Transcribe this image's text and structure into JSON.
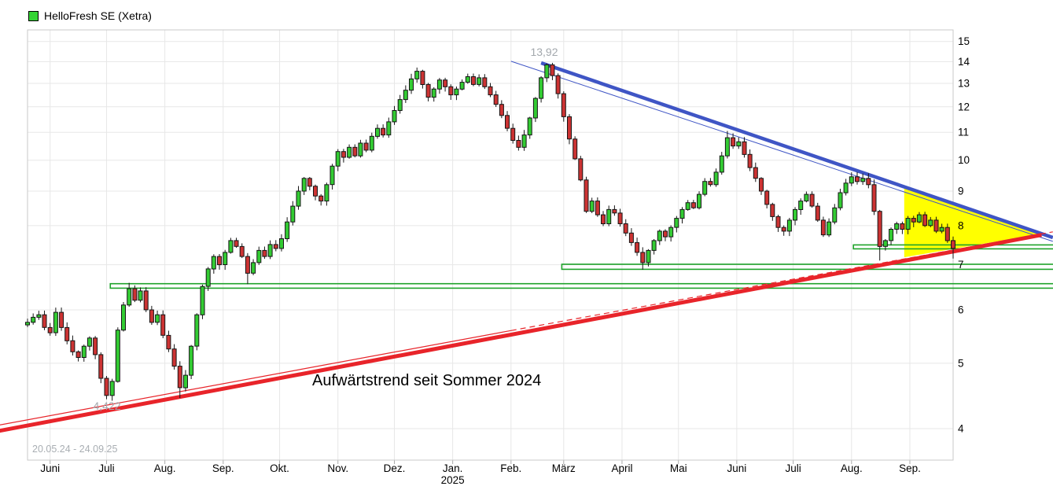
{
  "header": {
    "legend_color": "#35d435",
    "instrument": "HelloFresh SE (Xetra)"
  },
  "labels": {
    "high": "13,92",
    "low": "4,422",
    "range": "20.05.24 - 24.09.25",
    "annotation": "Aufwärtstrend seit Sommer 2024"
  },
  "chart_data": {
    "type": "candlestick",
    "instrument": "HelloFresh SE (Xetra)",
    "period": "20.05.24 - 24.09.25",
    "yscale": "log",
    "ylim": [
      3.6,
      15.6
    ],
    "grid": true,
    "y_ticks": [
      15,
      14,
      13,
      12,
      11,
      10,
      9,
      8,
      7,
      6,
      5,
      4
    ],
    "total_days": 492,
    "x_months": [
      {
        "label": "Juni",
        "day": 12
      },
      {
        "label": "Juli",
        "day": 42
      },
      {
        "label": "Aug.",
        "day": 73
      },
      {
        "label": "Sep.",
        "day": 104
      },
      {
        "label": "Okt.",
        "day": 134
      },
      {
        "label": "Nov.",
        "day": 165
      },
      {
        "label": "Dez.",
        "day": 195
      },
      {
        "label": "Jan.",
        "day": 226,
        "sublabel": "2025"
      },
      {
        "label": "Feb.",
        "day": 257
      },
      {
        "label": "März",
        "day": 285
      },
      {
        "label": "April",
        "day": 316
      },
      {
        "label": "Mai",
        "day": 346
      },
      {
        "label": "Juni",
        "day": 377
      },
      {
        "label": "Juli",
        "day": 407
      },
      {
        "label": "Aug.",
        "day": 438
      },
      {
        "label": "Sep.",
        "day": 469
      }
    ],
    "candles": {
      "step_days": 3,
      "first_open": 5.7,
      "closes": [
        5.75,
        5.85,
        5.9,
        5.65,
        5.55,
        5.95,
        5.65,
        5.4,
        5.2,
        5.1,
        5.3,
        5.45,
        5.15,
        4.75,
        4.48,
        4.7,
        5.6,
        6.1,
        6.45,
        6.2,
        6.4,
        6.0,
        5.75,
        5.9,
        5.5,
        5.25,
        4.95,
        4.6,
        4.8,
        5.3,
        5.9,
        6.5,
        6.9,
        7.2,
        7.0,
        7.3,
        7.6,
        7.45,
        7.2,
        6.8,
        7.05,
        7.35,
        7.2,
        7.5,
        7.4,
        7.65,
        8.1,
        8.55,
        9.0,
        9.4,
        9.15,
        8.85,
        8.7,
        9.2,
        9.8,
        10.3,
        10.1,
        10.45,
        10.15,
        10.6,
        10.35,
        10.85,
        11.15,
        10.9,
        11.4,
        11.85,
        12.3,
        12.7,
        13.2,
        13.55,
        12.95,
        12.4,
        12.75,
        13.15,
        12.85,
        12.5,
        12.75,
        13.05,
        13.3,
        12.95,
        13.25,
        12.85,
        12.5,
        12.1,
        11.65,
        11.15,
        10.7,
        10.45,
        10.9,
        11.55,
        12.35,
        13.25,
        13.85,
        13.35,
        12.55,
        11.6,
        10.75,
        10.05,
        9.35,
        8.4,
        8.7,
        8.3,
        8.05,
        8.45,
        8.35,
        8.05,
        7.8,
        7.55,
        7.3,
        7.05,
        7.35,
        7.6,
        7.85,
        7.7,
        7.95,
        8.2,
        8.45,
        8.65,
        8.5,
        8.9,
        9.3,
        9.2,
        9.6,
        10.15,
        10.8,
        10.5,
        10.65,
        10.2,
        9.75,
        9.4,
        9.0,
        8.6,
        8.25,
        7.95,
        7.85,
        8.15,
        8.45,
        8.7,
        8.9,
        8.55,
        8.15,
        7.75,
        8.1,
        8.5,
        8.95,
        9.25,
        9.45,
        9.3,
        9.4,
        9.2,
        8.4,
        7.45,
        7.6,
        7.9,
        8.05,
        7.9,
        8.2,
        8.1,
        8.3,
        8.0,
        8.15,
        7.85,
        7.95,
        7.6,
        7.4
      ],
      "wick_low": {
        "14": 4.422,
        "27": 4.44,
        "39": 6.55,
        "109": 6.88,
        "151": 7.1,
        "164": 7.15
      },
      "wick_high": {
        "18": 6.58,
        "69": 13.72,
        "92": 13.92,
        "124": 11.05
      }
    },
    "high_point": {
      "day": 276,
      "price": 13.92,
      "label": "13,92"
    },
    "low_point": {
      "day": 42,
      "price": 4.422,
      "label": "4,422"
    },
    "trendlines": [
      {
        "name": "downtrend-line-inner",
        "color": "#3f55c5",
        "width": 1,
        "points": [
          [
            257,
            14.02
          ],
          [
            545,
            7.58
          ]
        ]
      },
      {
        "name": "downtrend-line-main",
        "color": "#3f55c5",
        "width": 4.5,
        "points": [
          [
            273,
            13.94
          ],
          [
            545,
            7.68
          ]
        ]
      },
      {
        "name": "uptrend-line-inner-solid",
        "color": "#e8242a",
        "width": 1.2,
        "points": [
          [
            -15,
            4.05
          ],
          [
            257,
            5.59
          ]
        ]
      },
      {
        "name": "uptrend-line-inner-dashed",
        "color": "#e8242a",
        "width": 1.2,
        "dash": "7,5",
        "points": [
          [
            257,
            5.59
          ],
          [
            545,
            7.83
          ]
        ]
      },
      {
        "name": "uptrend-line-main",
        "color": "#e8242a",
        "width": 5,
        "points": [
          [
            -15,
            3.97
          ],
          [
            539,
            7.75
          ]
        ]
      }
    ],
    "support_bands": [
      {
        "name": "support-band-6.5",
        "d1": 44,
        "d2": 548,
        "p_top": 6.56,
        "p_bot": 6.46
      },
      {
        "name": "support-band-7.0",
        "d1": 284,
        "d2": 548,
        "p_top": 7.01,
        "p_bot": 6.89
      },
      {
        "name": "support-band-7.4",
        "d1": 439,
        "d2": 548,
        "p_top": 7.49,
        "p_bot": 7.39
      }
    ],
    "triangle": {
      "name": "converging-triangle",
      "fill": "#ffff00",
      "points": [
        [
          466,
          9.13
        ],
        [
          538.9,
          7.78
        ],
        [
          466,
          7.18
        ]
      ]
    },
    "colors": {
      "up": "#33cc33",
      "down": "#cc3333",
      "outline": "#151515",
      "downtrend": "#3f55c5",
      "uptrend": "#e8242a",
      "support_band": "#1ea32a",
      "triangle": "#ffff00",
      "grid": "#e7e7e7",
      "frame": "#c9c9c9",
      "axis_text": "#000000",
      "muted_text": "#a3a8ad"
    }
  }
}
